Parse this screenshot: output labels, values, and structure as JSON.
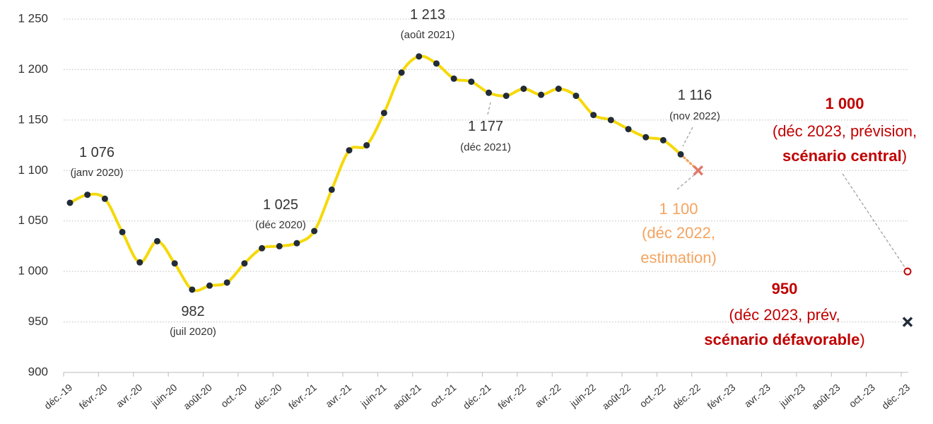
{
  "chart_data": {
    "type": "line",
    "categories": [
      "déc.-19",
      null,
      "févr.-20",
      null,
      "avr.-20",
      null,
      "juin-20",
      null,
      "août-20",
      null,
      "oct.-20",
      null,
      "déc.-20",
      null,
      "févr.-21",
      null,
      "avr.-21",
      null,
      "juin-21",
      null,
      "août-21",
      null,
      "oct.-21",
      null,
      "déc.-21",
      null,
      "févr.-22",
      null,
      "avr.-22",
      null,
      "juin-22",
      null,
      "août-22",
      null,
      "oct.-22",
      null,
      "déc.-22",
      null,
      "févr.-23",
      null,
      "avr.-23",
      null,
      "juin-23",
      null,
      "août-23",
      null,
      "oct.-23",
      null,
      "déc.-23"
    ],
    "series": [
      {
        "color": "#f5d90a",
        "marker_color": "#222b38",
        "line_style": "solid",
        "marker": "circle",
        "smooth": true,
        "values": [
          1068,
          1076,
          1072,
          1039,
          1009,
          1030,
          1008,
          982,
          986,
          989,
          1008,
          1023,
          1025,
          1028,
          1040,
          1081,
          1120,
          1125,
          1157,
          1197,
          1213,
          1206,
          1191,
          1188,
          1177,
          1174,
          1181,
          1175,
          1181,
          1174,
          1155,
          1150,
          1141,
          1133,
          1130,
          1116,
          null,
          null,
          null,
          null,
          null,
          null,
          null,
          null,
          null,
          null,
          null,
          null,
          null
        ]
      },
      {
        "color": "#f4a460",
        "marker_color": "#e07a6a",
        "line_style": "dotted",
        "marker": "x",
        "values": [
          null,
          null,
          null,
          null,
          null,
          null,
          null,
          null,
          null,
          null,
          null,
          null,
          null,
          null,
          null,
          null,
          null,
          null,
          null,
          null,
          null,
          null,
          null,
          null,
          null,
          null,
          null,
          null,
          null,
          null,
          null,
          null,
          null,
          null,
          null,
          1116,
          1100,
          null,
          null,
          null,
          null,
          null,
          null,
          null,
          null,
          null,
          null,
          null,
          null
        ]
      },
      {
        "color": "#c00000",
        "marker_color": "#c00000",
        "line_style": "dashed",
        "marker": "circle",
        "values": [
          null,
          null,
          null,
          null,
          null,
          null,
          null,
          null,
          null,
          null,
          null,
          null,
          null,
          null,
          null,
          null,
          null,
          null,
          null,
          null,
          null,
          null,
          null,
          null,
          null,
          null,
          null,
          null,
          null,
          null,
          null,
          null,
          null,
          null,
          null,
          null,
          1100,
          null,
          null,
          null,
          null,
          null,
          null,
          null,
          null,
          null,
          null,
          null,
          1000
        ]
      },
      {
        "color": "#d9534f",
        "marker_color": "#222b38",
        "line_style": "dotted",
        "marker": "x",
        "values": [
          null,
          null,
          null,
          null,
          null,
          null,
          null,
          null,
          null,
          null,
          null,
          null,
          null,
          null,
          null,
          null,
          null,
          null,
          null,
          null,
          null,
          null,
          null,
          null,
          null,
          null,
          null,
          null,
          null,
          null,
          null,
          null,
          null,
          null,
          null,
          null,
          1100,
          null,
          null,
          null,
          null,
          null,
          null,
          null,
          null,
          null,
          null,
          null,
          950
        ]
      }
    ],
    "ylim": [
      900,
      1250
    ],
    "yticks": [
      900,
      950,
      {
        "value": 1000,
        "label": "1 000"
      },
      {
        "value": 1050,
        "label": "1 050"
      },
      {
        "value": 1100,
        "label": "1 100"
      },
      {
        "value": 1150,
        "label": "1 150"
      },
      {
        "value": 1200,
        "label": "1 200"
      },
      {
        "value": 1250,
        "label": "1 250"
      }
    ],
    "grid": true,
    "annotations": [
      {
        "lines": [
          [
            "1 076"
          ],
          [
            "(janv 2020)"
          ]
        ]
      },
      {
        "lines": [
          [
            "982"
          ],
          [
            "(juil 2020)"
          ]
        ]
      },
      {
        "lines": [
          [
            "1 025"
          ],
          [
            "(déc 2020)"
          ]
        ]
      },
      {
        "lines": [
          [
            "1 213"
          ],
          [
            "(août 2021)"
          ]
        ]
      },
      {
        "lines": [
          [
            "1 177"
          ],
          [
            "(déc 2021)"
          ]
        ]
      },
      {
        "lines": [
          [
            "1 116"
          ],
          [
            "(nov 2022)"
          ]
        ]
      },
      {
        "lines": [
          [
            "1 100"
          ],
          [
            "(déc 2022,"
          ],
          [
            "estimation)"
          ]
        ]
      },
      {
        "lines": [
          [
            "1 000"
          ],
          [
            "(déc 2023, prévision,"
          ],
          [
            "scénario central",
            ")"
          ]
        ]
      },
      {
        "lines": [
          [
            "950"
          ],
          [
            "(déc 2023, prév,"
          ],
          [
            "scénario défavorable",
            ")"
          ]
        ]
      }
    ]
  }
}
